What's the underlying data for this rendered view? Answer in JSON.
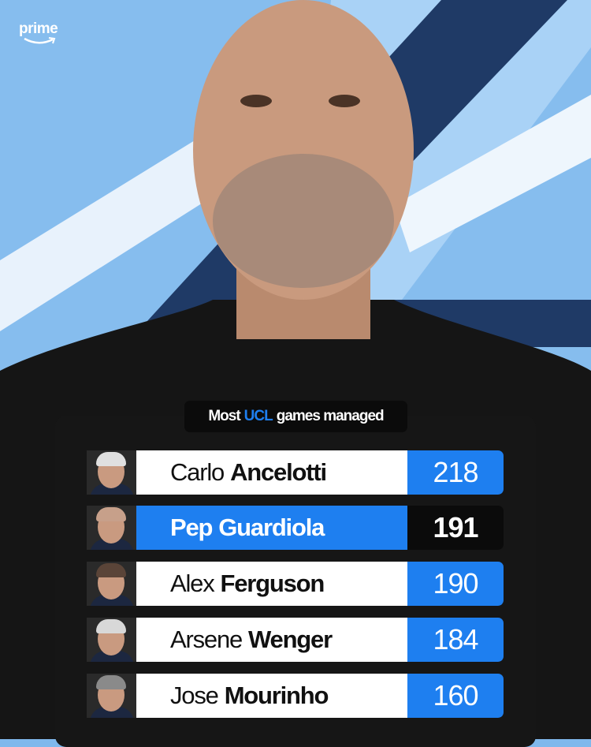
{
  "brand": {
    "logo_text": "prime"
  },
  "title": {
    "prefix": "Most",
    "highlight": "UCL",
    "suffix": "games managed"
  },
  "colors": {
    "accent": "#1e7ff0",
    "panel": "#161616",
    "background": "#7fb8ec"
  },
  "rows": [
    {
      "first": "Carlo",
      "last": "Ancelotti",
      "value": "218",
      "highlighted": false
    },
    {
      "first": "Pep",
      "last": "Guardiola",
      "value": "191",
      "highlighted": true
    },
    {
      "first": "Alex",
      "last": "Ferguson",
      "value": "190",
      "highlighted": false
    },
    {
      "first": "Arsene",
      "last": "Wenger",
      "value": "184",
      "highlighted": false
    },
    {
      "first": "Jose",
      "last": "Mourinho",
      "value": "160",
      "highlighted": false
    }
  ]
}
